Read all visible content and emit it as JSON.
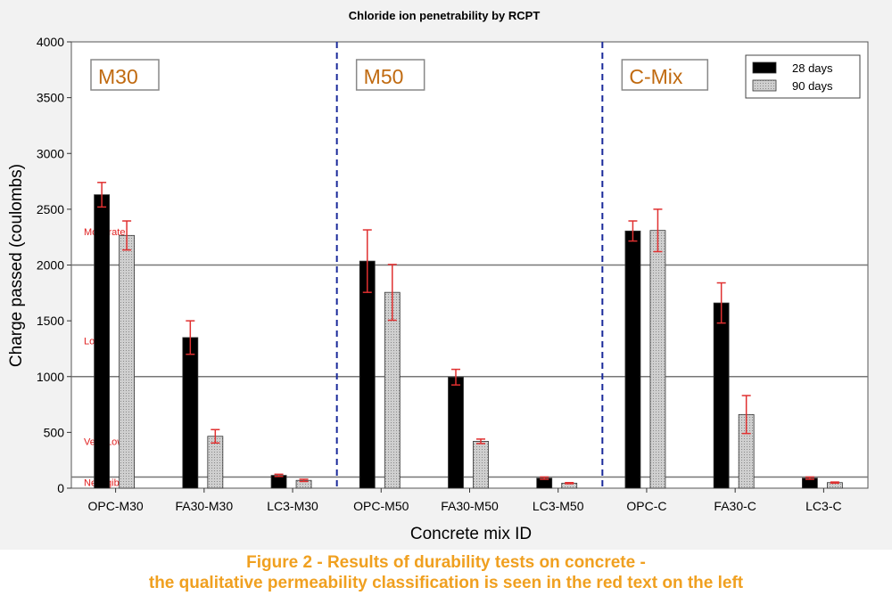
{
  "chart_data": {
    "type": "bar",
    "title": "Chloride ion penetrability by RCPT",
    "xlabel": "Concrete mix ID",
    "ylabel": "Charge passed (coulombs)",
    "ylim": [
      0,
      4000
    ],
    "yticks": [
      0,
      500,
      1000,
      1500,
      2000,
      2500,
      3000,
      3500,
      4000
    ],
    "categories": [
      "OPC-M30",
      "FA30-M30",
      "LC3-M30",
      "OPC-M50",
      "FA30-M50",
      "LC3-M50",
      "OPC-C",
      "FA30-C",
      "LC3-C"
    ],
    "series": [
      {
        "name": "28 days",
        "color": "#000000",
        "values": [
          2630,
          1350,
          115,
          2035,
          995,
          90,
          2305,
          1660,
          90
        ],
        "error": [
          110,
          150,
          10,
          280,
          70,
          10,
          90,
          180,
          10
        ]
      },
      {
        "name": "90 days",
        "color": "#cfcfcf",
        "values": [
          2265,
          465,
          70,
          1755,
          420,
          45,
          2310,
          660,
          50
        ],
        "error": [
          130,
          60,
          10,
          250,
          20,
          5,
          190,
          170,
          5
        ]
      }
    ],
    "reference_lines": [
      100,
      1000,
      2000
    ],
    "error_bar_color": "#e03030",
    "groups": [
      {
        "label": "M30",
        "start": 0,
        "end": 2
      },
      {
        "label": "M50",
        "start": 3,
        "end": 5
      },
      {
        "label": "C-Mix",
        "start": 6,
        "end": 8
      }
    ],
    "group_label_color": "#c06a10",
    "separator_color": "#1a2a9a",
    "classification": [
      {
        "label": "Moderate",
        "y": 2300
      },
      {
        "label": "Low",
        "y": 1320
      },
      {
        "label": "Very Low",
        "y": 420
      },
      {
        "label": "Negligible",
        "y": 50
      }
    ],
    "classification_color": "#e02020",
    "legend_position": "top-right",
    "grid": false
  },
  "caption": {
    "line1": "Figure 2 - Results of durability tests on concrete  -",
    "line2": "the qualitative permeability classification is seen in the red text on the left"
  }
}
